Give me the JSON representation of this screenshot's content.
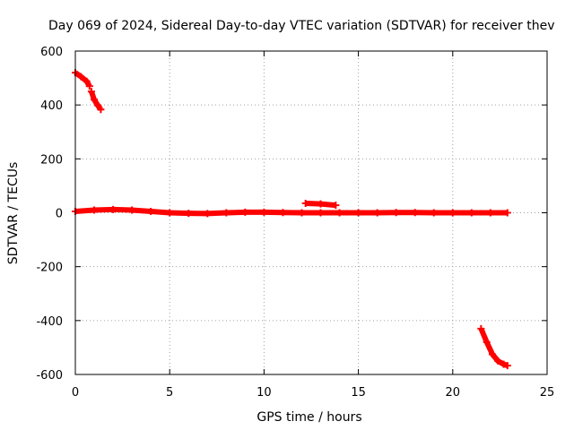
{
  "chart_data": {
    "type": "scatter",
    "title": "Day 069 of 2024, Sidereal Day-to-day VTEC variation (SDTVAR) for receiver thev",
    "xlabel": "GPS time / hours",
    "ylabel": "SDTVAR / TECUs",
    "xlim": [
      0,
      25
    ],
    "ylim": [
      -600,
      600
    ],
    "xticks": [
      "0",
      "5",
      "10",
      "15",
      "20",
      "25"
    ],
    "yticks": [
      "-600",
      "-400",
      "-200",
      "0",
      "200",
      "400",
      "600"
    ],
    "grid": true,
    "legend": "none",
    "series_color": "#ff0000",
    "series": [
      {
        "values": [
          [
            0.0,
            520
          ],
          [
            0.3,
            505
          ],
          [
            0.6,
            488
          ],
          [
            0.75,
            470
          ]
        ]
      },
      {
        "values": [
          [
            0.85,
            450
          ],
          [
            1.0,
            420
          ],
          [
            1.2,
            398
          ],
          [
            1.35,
            383
          ]
        ]
      },
      {
        "values": [
          [
            0.0,
            5
          ],
          [
            1.0,
            10
          ],
          [
            2.0,
            12
          ],
          [
            3.0,
            10
          ],
          [
            4.0,
            5
          ],
          [
            5.0,
            0
          ],
          [
            6.0,
            -2
          ],
          [
            7.0,
            -3
          ],
          [
            8.0,
            0
          ],
          [
            9.0,
            2
          ],
          [
            10.0,
            2
          ],
          [
            11.0,
            1
          ],
          [
            12.0,
            0
          ],
          [
            13.0,
            0
          ],
          [
            14.0,
            0
          ],
          [
            15.0,
            0
          ],
          [
            16.0,
            0
          ],
          [
            17.0,
            1
          ],
          [
            18.0,
            1
          ],
          [
            19.0,
            0
          ],
          [
            20.0,
            0
          ],
          [
            21.0,
            0
          ],
          [
            22.0,
            0
          ],
          [
            22.9,
            0
          ]
        ]
      },
      {
        "values": [
          [
            12.2,
            35
          ],
          [
            13.0,
            33
          ],
          [
            13.8,
            28
          ]
        ]
      },
      {
        "values": [
          [
            21.5,
            -430
          ],
          [
            21.8,
            -480
          ],
          [
            22.1,
            -525
          ],
          [
            22.4,
            -550
          ],
          [
            22.7,
            -562
          ],
          [
            22.9,
            -567
          ]
        ]
      }
    ]
  }
}
